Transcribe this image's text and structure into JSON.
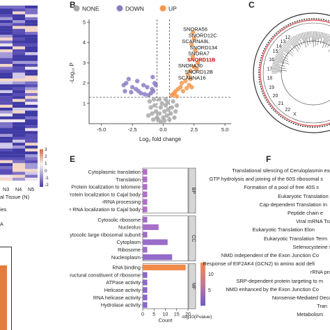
{
  "panels": {
    "a": {
      "ylabel_fragment": "al Tissue (N)",
      "column_labels": [
        "N3",
        "N4",
        "N5"
      ],
      "colorbar_ticks": [
        "3",
        "2",
        "1",
        "0",
        "-1",
        "-2"
      ],
      "left_fragments": [
        "ies",
        "A"
      ]
    },
    "b": {
      "letter": "B"
    },
    "c": {
      "letter": "C"
    },
    "e": {
      "letter": "E"
    },
    "f": {
      "letter": "F"
    }
  },
  "colors": {
    "none": "#a8a8a8",
    "down": "#8e7cc3",
    "up": "#f5994e",
    "highlight": "#cc0000",
    "bp_bar": "#b06fc7",
    "rna_binding_bar": "#f28a4a"
  },
  "chart_data": [
    {
      "type": "scatter",
      "panel": "B",
      "legend": [
        "NONE",
        "DOWN",
        "UP"
      ],
      "legend_position": "top",
      "xlabel": "Log₂ fold change",
      "ylabel": "-Log₁₀ P",
      "xlim": [
        -6,
        5.5
      ],
      "ylim": [
        0,
        5
      ],
      "xticks": [
        "-5.0",
        "-2.5",
        "0.0",
        "2.5",
        "5.0"
      ],
      "yticks": [
        "1",
        "2",
        "3",
        "4",
        "5"
      ],
      "thresholds": {
        "x": [
          -0.5,
          0.5
        ],
        "y": 1.3
      },
      "series": [
        {
          "name": "NONE",
          "points": [
            [
              -0.4,
              0.2
            ],
            [
              -0.3,
              0.5
            ],
            [
              -0.2,
              0.8
            ],
            [
              -0.1,
              1.0
            ],
            [
              0.0,
              0.3
            ],
            [
              0.1,
              0.6
            ],
            [
              0.2,
              0.9
            ],
            [
              0.3,
              0.4
            ],
            [
              0.4,
              0.7
            ],
            [
              -0.5,
              0.3
            ],
            [
              -0.6,
              0.6
            ],
            [
              -0.7,
              0.9
            ],
            [
              0.5,
              0.2
            ],
            [
              0.6,
              0.5
            ],
            [
              0.7,
              0.8
            ],
            [
              0.8,
              1.1
            ],
            [
              -0.8,
              0.2
            ],
            [
              -0.9,
              0.5
            ],
            [
              -1.0,
              0.8
            ],
            [
              -1.1,
              1.1
            ],
            [
              0.9,
              0.3
            ],
            [
              1.0,
              0.6
            ],
            [
              -0.3,
              1.2
            ],
            [
              0.2,
              1.2
            ],
            [
              -1.2,
              0.4
            ],
            [
              1.1,
              0.9
            ],
            [
              -0.2,
              0.1
            ],
            [
              0.1,
              0.15
            ],
            [
              0.35,
              1.05
            ],
            [
              -0.75,
              1.2
            ]
          ]
        },
        {
          "name": "DOWN",
          "points": [
            [
              -2.8,
              2.2
            ],
            [
              -3.0,
              2.0
            ],
            [
              -3.2,
              1.9
            ],
            [
              -2.5,
              1.8
            ],
            [
              -2.2,
              1.7
            ],
            [
              -2.0,
              1.6
            ],
            [
              -1.8,
              1.5
            ],
            [
              -1.5,
              1.45
            ],
            [
              -1.2,
              1.4
            ],
            [
              -1.0,
              1.5
            ],
            [
              -0.9,
              1.7
            ],
            [
              -0.8,
              1.6
            ],
            [
              -0.7,
              2.0
            ],
            [
              -0.6,
              1.9
            ],
            [
              -2.6,
              1.55
            ],
            [
              -3.1,
              1.6
            ],
            [
              -1.6,
              1.9
            ],
            [
              -2.1,
              2.1
            ],
            [
              -1.3,
              1.8
            ],
            [
              -0.85,
              2.3
            ]
          ]
        },
        {
          "name": "UP",
          "points": [
            [
              2.4,
              4.5
            ],
            [
              2.5,
              4.2
            ],
            [
              2.3,
              3.9
            ],
            [
              2.6,
              3.6
            ],
            [
              2.4,
              3.3
            ],
            [
              2.8,
              3.0
            ],
            [
              2.5,
              2.8
            ],
            [
              2.7,
              2.7
            ],
            [
              2.2,
              2.6
            ],
            [
              2.0,
              2.4
            ],
            [
              2.2,
              2.2
            ],
            [
              1.8,
              2.1
            ],
            [
              1.5,
              2.0
            ],
            [
              2.1,
              1.9
            ],
            [
              1.4,
              1.8
            ],
            [
              1.2,
              1.7
            ],
            [
              1.0,
              1.6
            ],
            [
              0.9,
              1.5
            ],
            [
              0.8,
              1.45
            ],
            [
              1.1,
              1.35
            ],
            [
              0.7,
              1.4
            ],
            [
              1.6,
              1.6
            ],
            [
              1.9,
              1.75
            ],
            [
              2.3,
              1.8
            ]
          ]
        }
      ],
      "annotations": [
        {
          "label": "SNORA56",
          "x": 2.4,
          "y": 4.5,
          "highlight": false
        },
        {
          "label": "SNORD12C",
          "x": 2.5,
          "y": 4.2,
          "highlight": false
        },
        {
          "label": "SCARNA9L",
          "x": 2.3,
          "y": 3.9,
          "highlight": false
        },
        {
          "label": "SNORD134",
          "x": 2.6,
          "y": 3.6,
          "highlight": false
        },
        {
          "label": "SNORA7",
          "x": 2.8,
          "y": 3.3,
          "highlight": false
        },
        {
          "label": "SNORD11B",
          "x": 2.4,
          "y": 3.0,
          "highlight": true
        },
        {
          "label": "SNORA30",
          "x": 2.0,
          "y": 2.7,
          "highlight": false
        },
        {
          "label": "SNORD12B",
          "x": 2.2,
          "y": 2.4,
          "highlight": false
        },
        {
          "label": "SCARNA16",
          "x": 2.0,
          "y": 2.1,
          "highlight": false
        }
      ]
    },
    {
      "type": "bar",
      "panel": "E",
      "orientation": "horizontal",
      "xlabel": "Count",
      "xlim": [
        0,
        20
      ],
      "xticks": [
        "0",
        "5",
        "10",
        "15",
        "20"
      ],
      "colorbar_label": "-log10(Pvalue)",
      "colorbar_ticks": [
        "10",
        "5"
      ],
      "groups": [
        {
          "name": "BP",
          "categories": [
            "Cytoplasmic translation",
            "Translation",
            "Protein localization to telomere",
            "Protein localization to Cajal body",
            "rRNA processing",
            "Telomerase RNA localization to Cajal body"
          ],
          "values": [
            2,
            2,
            2,
            2,
            2,
            2
          ],
          "colors": [
            "#b06fc7",
            "#b06fc7",
            "#b06fc7",
            "#b06fc7",
            "#b06fc7",
            "#b06fc7"
          ]
        },
        {
          "name": "CC",
          "categories": [
            "Cytosolic ribosome",
            "Nucleolus",
            "Cytosolic large ribosomal subunit",
            "Cytoplasm",
            "Ribosome",
            "Nucleoplasm"
          ],
          "values": [
            2,
            7,
            2,
            11,
            2,
            13
          ],
          "colors": [
            "#a06dc9",
            "#a86fc8",
            "#a06dc9",
            "#9a6cc9",
            "#a06dc9",
            "#946bca"
          ]
        },
        {
          "name": "MF",
          "categories": [
            "RNA binding",
            "Structural constituent of ribosome",
            "ATPase activity",
            "Helicase activity",
            "RNA helicase activity",
            "Hydrolase activity"
          ],
          "values": [
            19,
            2,
            2,
            2,
            2,
            2
          ],
          "colors": [
            "#f28a4a",
            "#8a68cb",
            "#8a68cb",
            "#8a68cb",
            "#8a68cb",
            "#8a68cb"
          ]
        }
      ]
    },
    {
      "type": "table",
      "panel": "F",
      "rows": [
        "Translational silencing of Ceruloplasmin expr",
        "GTP hydrolysis and joining of the 60S ribosomal s",
        "Formation of a pool of free 40S s",
        "Eukaryotic Translation In",
        "Cap-dependent Translation In",
        "Peptide chain e",
        "Viral mRNA Tran",
        "Eukaryotic Translation Elon",
        "Eukaryotic Translation Term",
        "Selenocysteine sy",
        "NMD independent of the Exon Junction Co",
        "Response of EIF2AK4 (GCN2) to amino acid defi",
        "rRNA proc",
        "SRP-dependent protein targeting to m",
        "NMD enhanced by the Exon Junction Co",
        "Nonsense-Mediated Decay",
        "Tran",
        "Metabolism"
      ]
    }
  ]
}
